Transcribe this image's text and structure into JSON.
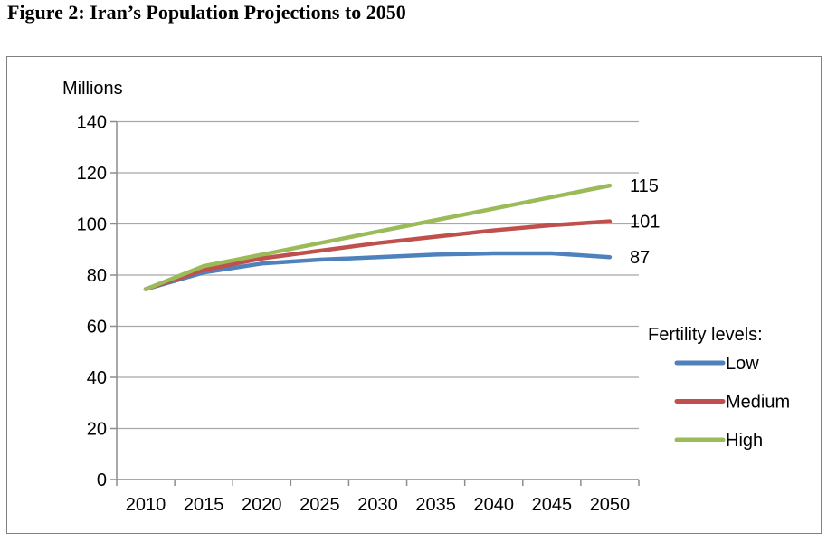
{
  "figure_title": "Figure 2: Iran’s Population Projections to 2050",
  "chart_data": {
    "type": "line",
    "title": "Figure 2: Iran’s Population Projections to 2050",
    "unit_label": "Millions",
    "categories": [
      "2010",
      "2015",
      "2020",
      "2025",
      "2030",
      "2035",
      "2040",
      "2045",
      "2050"
    ],
    "xlabel": "",
    "ylabel": "Millions",
    "y_axis": {
      "min": 0,
      "max": 140,
      "step": 20
    },
    "grid": "horizontal",
    "legend": {
      "title": "Fertility levels:",
      "position": "right"
    },
    "series": [
      {
        "name": "Low",
        "color": "#4F81BD",
        "values": [
          74.5,
          81,
          84.5,
          86,
          87,
          88,
          88.5,
          88.5,
          87
        ],
        "end_label": "87"
      },
      {
        "name": "Medium",
        "color": "#C0504D",
        "values": [
          74.5,
          82,
          86.5,
          89.5,
          92.5,
          95,
          97.5,
          99.5,
          101
        ],
        "end_label": "101"
      },
      {
        "name": "High",
        "color": "#9BBB59",
        "values": [
          74.5,
          83.5,
          88,
          92.5,
          97,
          101.5,
          106,
          110.5,
          115
        ],
        "end_label": "115"
      }
    ],
    "axis_color": "#8C8C8C",
    "gridline_color": "#A8A8A8"
  }
}
